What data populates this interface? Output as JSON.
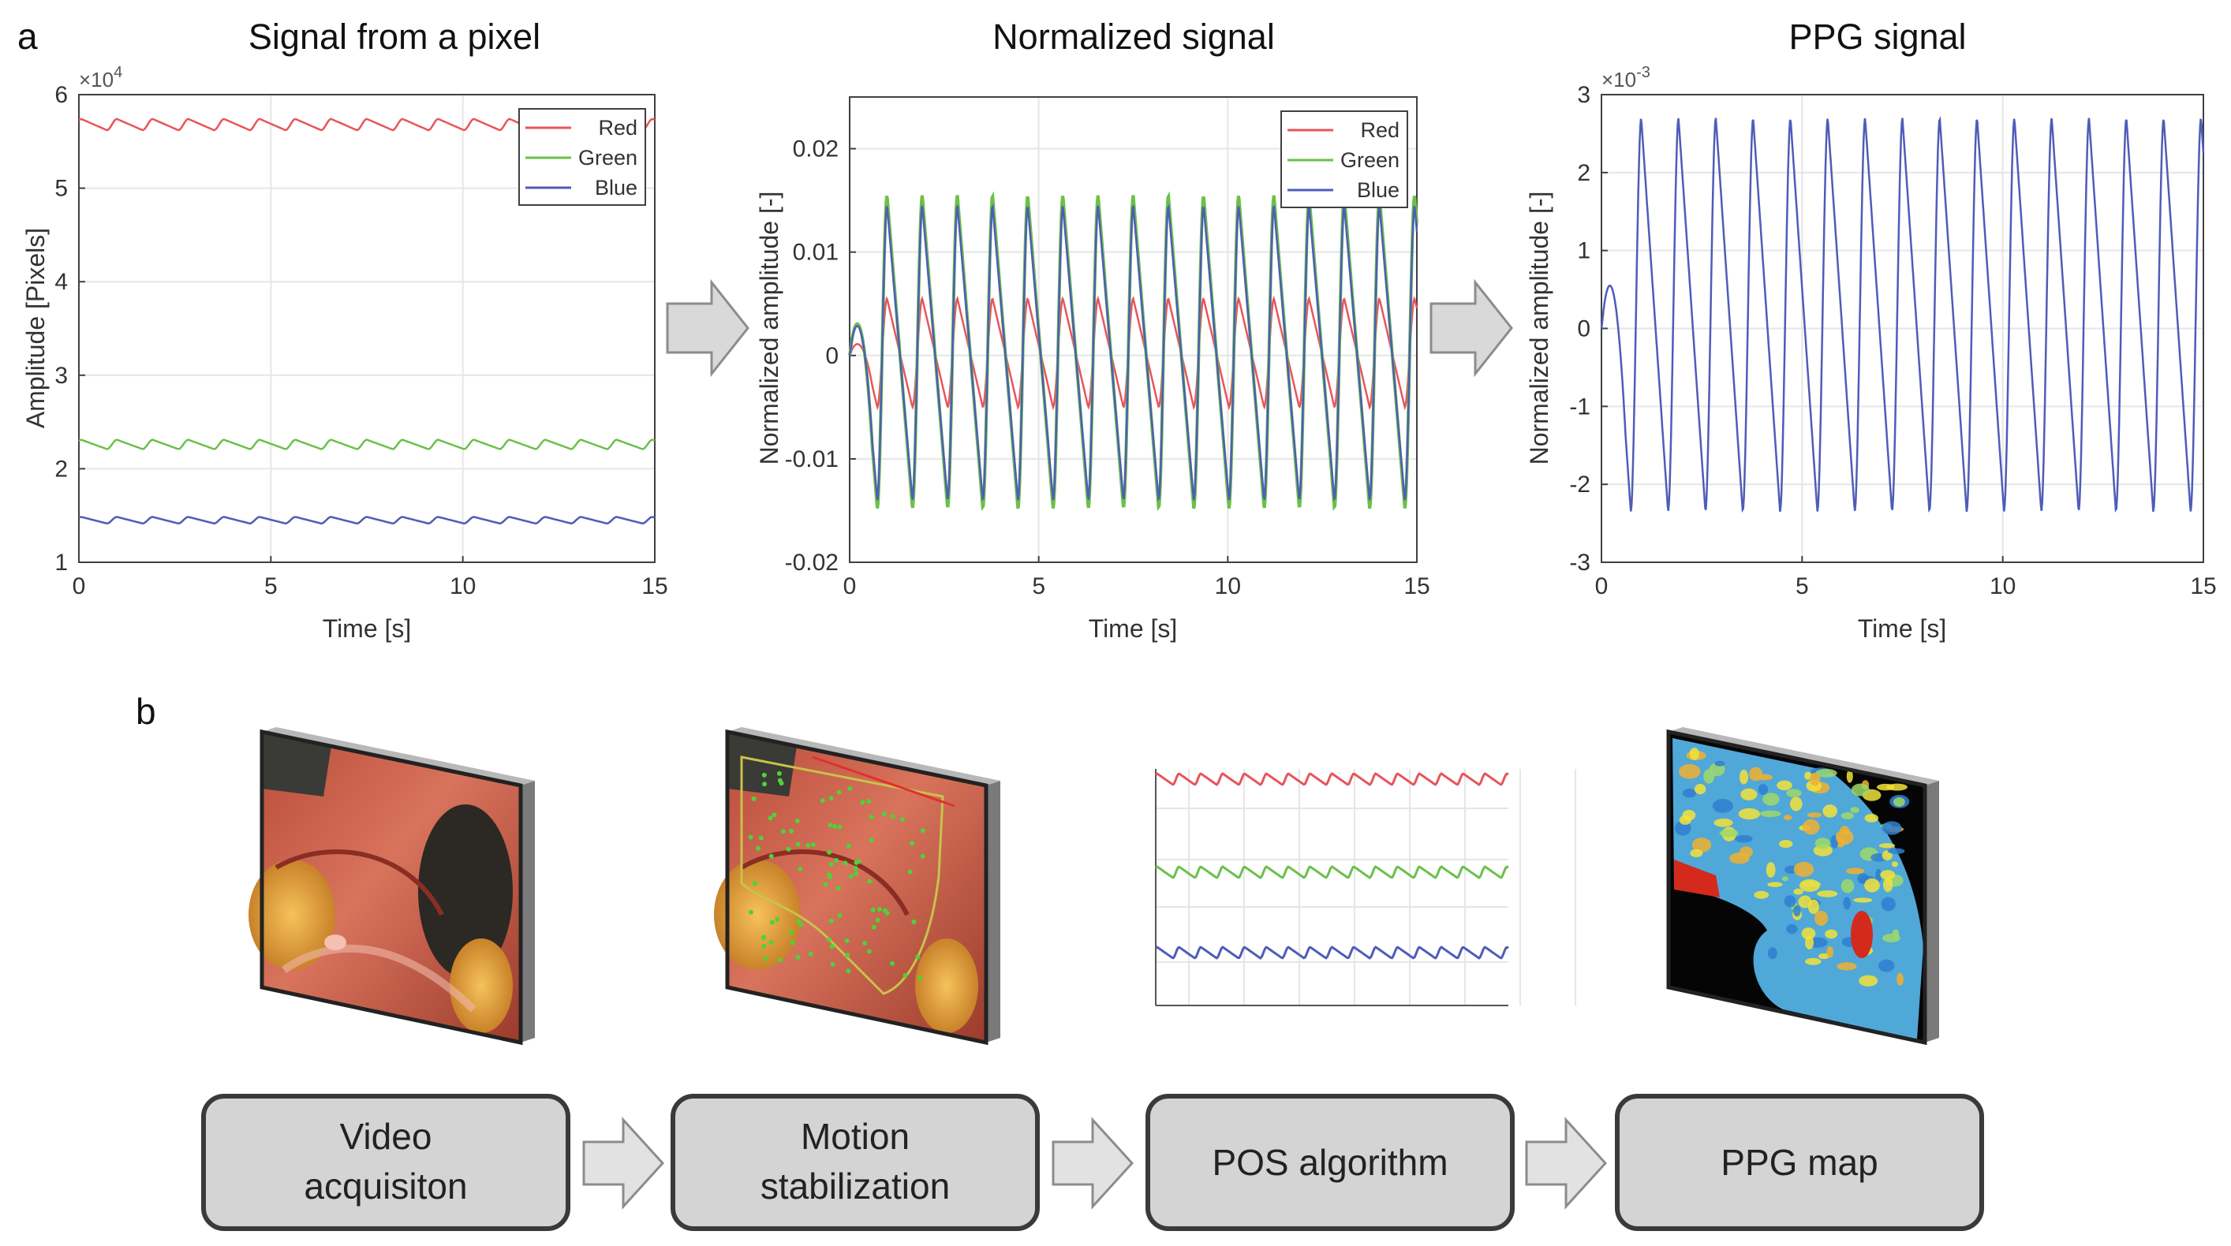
{
  "panel_a": {
    "label": "a",
    "arrow_color": "#d9d9d9",
    "arrow_stroke": "#8c8c8c"
  },
  "panel_b": {
    "label": "b",
    "steps": [
      {
        "line1": "Video",
        "line2": "acquisiton"
      },
      {
        "line1": "Motion",
        "line2": "stabilization"
      },
      {
        "line1": "POS algorithm",
        "line2": ""
      },
      {
        "line1": "PPG map",
        "line2": ""
      }
    ],
    "box_fill": "#d4d4d4",
    "box_stroke": "#3a3a3a"
  },
  "colors": {
    "red": "#e8555a",
    "green": "#6cc04a",
    "blue": "#4f5cb8",
    "grid": "#e6e6e6",
    "axis": "#404040"
  },
  "chart_data": [
    {
      "type": "line",
      "title": "Signal from a pixel",
      "xlabel": "Time [s]",
      "ylabel": "Amplitude [Pixels]",
      "exponent_label": "×10",
      "exponent": "4",
      "xlim": [
        0,
        15
      ],
      "ylim": [
        1,
        6
      ],
      "xticks": [
        0,
        5,
        10,
        15
      ],
      "yticks": [
        1,
        2,
        3,
        4,
        5,
        6
      ],
      "grid": true,
      "legend_position": "top-right",
      "pulse_period_s": 0.93,
      "series": [
        {
          "name": "Red",
          "color": "#e8555a",
          "baseline": 5.68,
          "amplitude": 0.12
        },
        {
          "name": "Green",
          "color": "#6cc04a",
          "baseline": 2.26,
          "amplitude": 0.1
        },
        {
          "name": "Blue",
          "color": "#4f5cb8",
          "baseline": 1.45,
          "amplitude": 0.07
        }
      ]
    },
    {
      "type": "line",
      "title": "Normalized signal",
      "xlabel": "Time [s]",
      "ylabel": "Normalized amplitude [-]",
      "xlim": [
        0,
        15
      ],
      "ylim": [
        -0.02,
        0.025
      ],
      "xticks": [
        0,
        5,
        10,
        15
      ],
      "yticks": [
        -0.02,
        -0.01,
        0,
        0.01,
        0.02
      ],
      "ytick_labels": [
        "-0.02",
        "-0.01",
        "0",
        "0.01",
        "0.02"
      ],
      "grid": true,
      "legend_position": "top-right",
      "pulse_period_s": 0.93,
      "series": [
        {
          "name": "Red",
          "color": "#e8555a",
          "peak": 0.0055,
          "trough": -0.005
        },
        {
          "name": "Green",
          "color": "#6cc04a",
          "peak": 0.0155,
          "trough": -0.0148
        },
        {
          "name": "Blue",
          "color": "#4f5cb8",
          "peak": 0.0145,
          "trough": -0.014
        }
      ]
    },
    {
      "type": "line",
      "title": "PPG signal",
      "xlabel": "Time [s]",
      "ylabel": "Normalized amplitude [-]",
      "exponent_label": "×10",
      "exponent": "-3",
      "xlim": [
        0,
        15
      ],
      "ylim": [
        -3,
        3
      ],
      "xticks": [
        0,
        5,
        10,
        15
      ],
      "yticks": [
        -3,
        -2,
        -1,
        0,
        1,
        2,
        3
      ],
      "grid": true,
      "pulse_period_s": 0.93,
      "series": [
        {
          "name": "PPG",
          "color": "#4f5cb8",
          "peak": 2.7,
          "trough": -2.35
        }
      ]
    }
  ]
}
